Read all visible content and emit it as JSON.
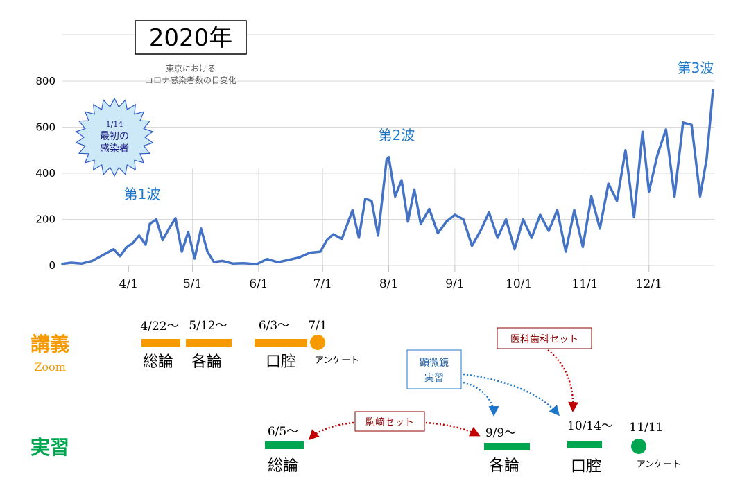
{
  "chart_data": {
    "type": "line",
    "year_title": "2020年",
    "subtitle_lines": [
      "東京における",
      "コロナ感染者数の日変化"
    ],
    "xlabel": "",
    "ylabel": "",
    "yticks": [
      0,
      200,
      400,
      600,
      800
    ],
    "ylim": [
      0,
      800
    ],
    "xticks": [
      "4/1",
      "5/1",
      "6/1",
      "7/1",
      "8/1",
      "9/1",
      "10/1",
      "11/1",
      "12/1"
    ],
    "grid": true,
    "line_color": "#4472C4",
    "wave_labels": [
      "第1波",
      "第2波",
      "第3波"
    ],
    "first_case_badge": [
      "1/14",
      "最初の",
      "感染者"
    ],
    "series": [
      {
        "x": [
          "3/1",
          "3/5",
          "3/10",
          "3/15",
          "3/20",
          "3/25",
          "3/28",
          "3/31",
          "4/3",
          "4/6",
          "4/9",
          "4/11",
          "4/14",
          "4/17",
          "4/20",
          "4/23",
          "4/26",
          "4/29",
          "5/2",
          "5/5",
          "5/8",
          "5/11",
          "5/15",
          "5/20",
          "5/25",
          "5/31",
          "6/5",
          "6/10",
          "6/15",
          "6/20",
          "6/25",
          "6/30",
          "7/3",
          "7/6",
          "7/10",
          "7/15",
          "7/18",
          "7/21",
          "7/24",
          "7/27",
          "7/31",
          "8/1",
          "8/4",
          "8/7",
          "8/10",
          "8/13",
          "8/16",
          "8/20",
          "8/24",
          "8/28",
          "9/1",
          "9/5",
          "9/9",
          "9/13",
          "9/17",
          "9/21",
          "9/25",
          "9/29",
          "10/3",
          "10/7",
          "10/11",
          "10/15",
          "10/19",
          "10/23",
          "10/27",
          "10/31",
          "11/4",
          "11/8",
          "11/12",
          "11/16",
          "11/20",
          "11/24",
          "11/28",
          "12/1",
          "12/5",
          "12/9",
          "12/13",
          "12/17",
          "12/21",
          "12/25",
          "12/28",
          "12/31"
        ],
        "y": [
          7,
          12,
          8,
          20,
          45,
          70,
          40,
          78,
          97,
          130,
          90,
          180,
          200,
          110,
          160,
          205,
          60,
          145,
          30,
          160,
          60,
          15,
          20,
          8,
          10,
          5,
          28,
          14,
          24,
          35,
          55,
          60,
          110,
          135,
          115,
          240,
          120,
          290,
          280,
          130,
          460,
          470,
          300,
          370,
          190,
          330,
          180,
          245,
          140,
          190,
          220,
          200,
          85,
          150,
          230,
          120,
          200,
          70,
          200,
          120,
          220,
          150,
          240,
          60,
          240,
          80,
          300,
          160,
          355,
          280,
          500,
          210,
          580,
          320,
          480,
          590,
          300,
          620,
          610,
          300,
          460,
          760
        ]
      }
    ]
  },
  "schedule": {
    "lecture": {
      "title": "講義",
      "subtitle": "Zoom",
      "color": "#F59A00",
      "items": [
        {
          "date": "4/22〜",
          "topic": "総論"
        },
        {
          "date": "5/12〜",
          "topic": "各論"
        },
        {
          "date": "6/3〜",
          "topic": "口腔"
        },
        {
          "date": "7/1",
          "topic": "アンケート"
        }
      ]
    },
    "practice": {
      "title": "実習",
      "color": "#00A550",
      "items": [
        {
          "date": "6/5〜",
          "topic": "総論"
        },
        {
          "date": "9/9〜",
          "topic": "各論"
        },
        {
          "date": "10/14〜",
          "topic": "口腔"
        },
        {
          "date": "11/11",
          "topic": "アンケート"
        }
      ]
    },
    "annotations": {
      "medical_dental_set": "医科歯科セット",
      "microscope_line1": "顕微鏡",
      "microscope_line2": "実習",
      "komazaki_set": "駒﨑セット"
    }
  }
}
